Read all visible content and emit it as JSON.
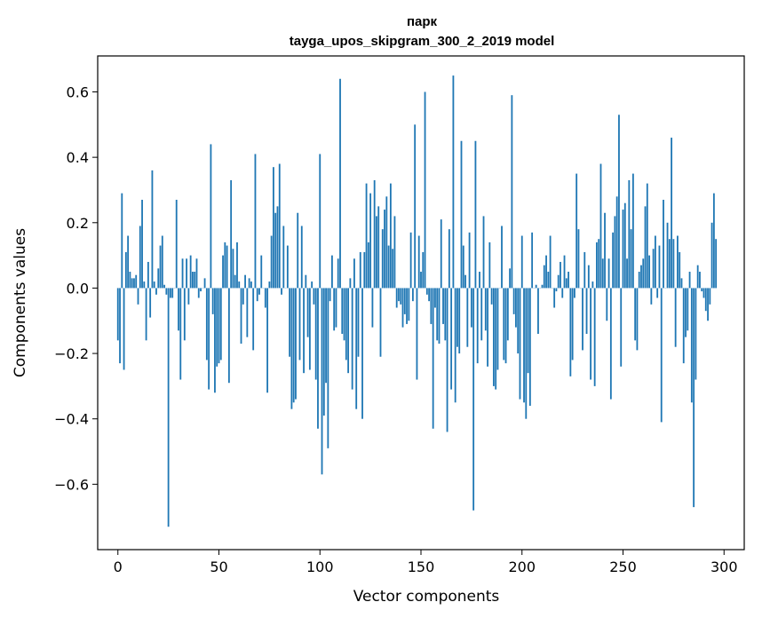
{
  "chart_data": {
    "type": "bar",
    "title": "парк",
    "subtitle": "tayga_upos_skipgram_300_2_2019 model",
    "xlabel": "Vector components",
    "ylabel": "Components values",
    "xlim": [
      -10,
      310
    ],
    "ylim": [
      -0.8,
      0.71
    ],
    "xticks": [
      0,
      50,
      100,
      150,
      200,
      250,
      300
    ],
    "xtick_labels": [
      "0",
      "50",
      "100",
      "150",
      "200",
      "250",
      "300"
    ],
    "yticks": [
      0.6,
      0.4,
      0.2,
      0.0,
      -0.2,
      -0.4,
      -0.6
    ],
    "ytick_labels": [
      "0.6",
      "0.4",
      "0.2",
      "0.0",
      "−0.2",
      "−0.4",
      "−0.6"
    ],
    "grid": false,
    "bar_color": "#1f77b4",
    "x_start": 0,
    "values": [
      -0.16,
      -0.23,
      0.29,
      -0.25,
      0.11,
      0.16,
      0.05,
      0.03,
      0.03,
      0.04,
      -0.05,
      0.19,
      0.27,
      0.02,
      -0.16,
      0.08,
      -0.09,
      0.36,
      0.02,
      -0.02,
      0.06,
      0.13,
      0.16,
      0.01,
      -0.02,
      -0.73,
      -0.03,
      -0.03,
      0.0,
      0.27,
      -0.13,
      -0.28,
      0.09,
      -0.16,
      0.09,
      -0.05,
      0.1,
      0.05,
      0.05,
      0.09,
      -0.03,
      -0.01,
      0.0,
      0.03,
      -0.22,
      -0.31,
      0.44,
      -0.08,
      -0.32,
      -0.24,
      -0.23,
      -0.22,
      0.1,
      0.14,
      0.13,
      -0.29,
      0.33,
      0.12,
      0.04,
      0.14,
      0.02,
      -0.17,
      -0.05,
      0.04,
      -0.15,
      0.03,
      0.02,
      -0.19,
      0.41,
      -0.04,
      -0.02,
      0.1,
      0.0,
      -0.06,
      -0.32,
      0.02,
      0.16,
      0.37,
      0.23,
      0.25,
      0.38,
      -0.02,
      0.19,
      0.0,
      0.13,
      -0.21,
      -0.37,
      -0.35,
      -0.34,
      0.23,
      -0.22,
      0.19,
      -0.26,
      0.04,
      -0.15,
      -0.25,
      0.02,
      -0.05,
      -0.28,
      -0.43,
      0.41,
      -0.57,
      -0.39,
      -0.29,
      -0.49,
      -0.04,
      0.1,
      -0.13,
      -0.12,
      0.09,
      0.64,
      -0.14,
      -0.16,
      -0.22,
      -0.26,
      0.03,
      -0.31,
      0.09,
      -0.37,
      -0.21,
      0.11,
      -0.4,
      0.11,
      0.32,
      0.14,
      0.29,
      -0.12,
      0.33,
      0.22,
      0.25,
      -0.21,
      0.18,
      0.24,
      0.28,
      0.13,
      0.32,
      0.12,
      0.22,
      -0.06,
      -0.04,
      -0.05,
      -0.12,
      -0.08,
      -0.11,
      -0.1,
      0.17,
      -0.04,
      0.5,
      -0.28,
      0.16,
      0.05,
      0.11,
      0.6,
      -0.02,
      -0.04,
      -0.11,
      -0.43,
      -0.06,
      -0.16,
      -0.17,
      0.21,
      -0.11,
      -0.16,
      -0.44,
      0.18,
      -0.31,
      0.65,
      -0.35,
      -0.18,
      -0.2,
      0.45,
      0.13,
      0.04,
      -0.18,
      0.17,
      -0.12,
      -0.68,
      0.45,
      -0.23,
      0.05,
      -0.16,
      0.22,
      -0.13,
      -0.24,
      0.14,
      -0.05,
      -0.3,
      -0.31,
      -0.25,
      0.0,
      0.19,
      -0.22,
      -0.23,
      -0.16,
      0.06,
      0.59,
      -0.08,
      -0.12,
      -0.2,
      -0.34,
      0.16,
      -0.35,
      -0.4,
      -0.26,
      -0.36,
      0.17,
      0.0,
      0.01,
      -0.14,
      0.0,
      0.01,
      0.07,
      0.1,
      0.05,
      0.16,
      0.0,
      -0.06,
      -0.01,
      0.04,
      0.08,
      -0.03,
      0.1,
      0.03,
      0.05,
      -0.27,
      -0.22,
      -0.03,
      0.35,
      0.18,
      0.0,
      -0.19,
      0.11,
      -0.14,
      0.07,
      -0.28,
      0.02,
      -0.3,
      0.14,
      0.15,
      0.38,
      0.09,
      0.23,
      -0.1,
      0.09,
      -0.34,
      0.17,
      0.22,
      0.28,
      0.53,
      -0.24,
      0.24,
      0.26,
      0.09,
      0.33,
      0.18,
      0.35,
      -0.16,
      -0.19,
      0.05,
      0.07,
      0.09,
      0.25,
      0.32,
      0.1,
      -0.05,
      0.12,
      0.16,
      -0.03,
      0.13,
      -0.41,
      0.27,
      0.0,
      0.2,
      0.15,
      0.46,
      0.15,
      -0.18,
      0.16,
      0.11,
      0.03,
      -0.23,
      -0.15,
      -0.13,
      0.05,
      -0.35,
      -0.67,
      -0.28,
      0.07,
      0.05,
      -0.01,
      -0.03,
      -0.07,
      -0.1,
      -0.05,
      0.2,
      0.29,
      0.15
    ]
  }
}
